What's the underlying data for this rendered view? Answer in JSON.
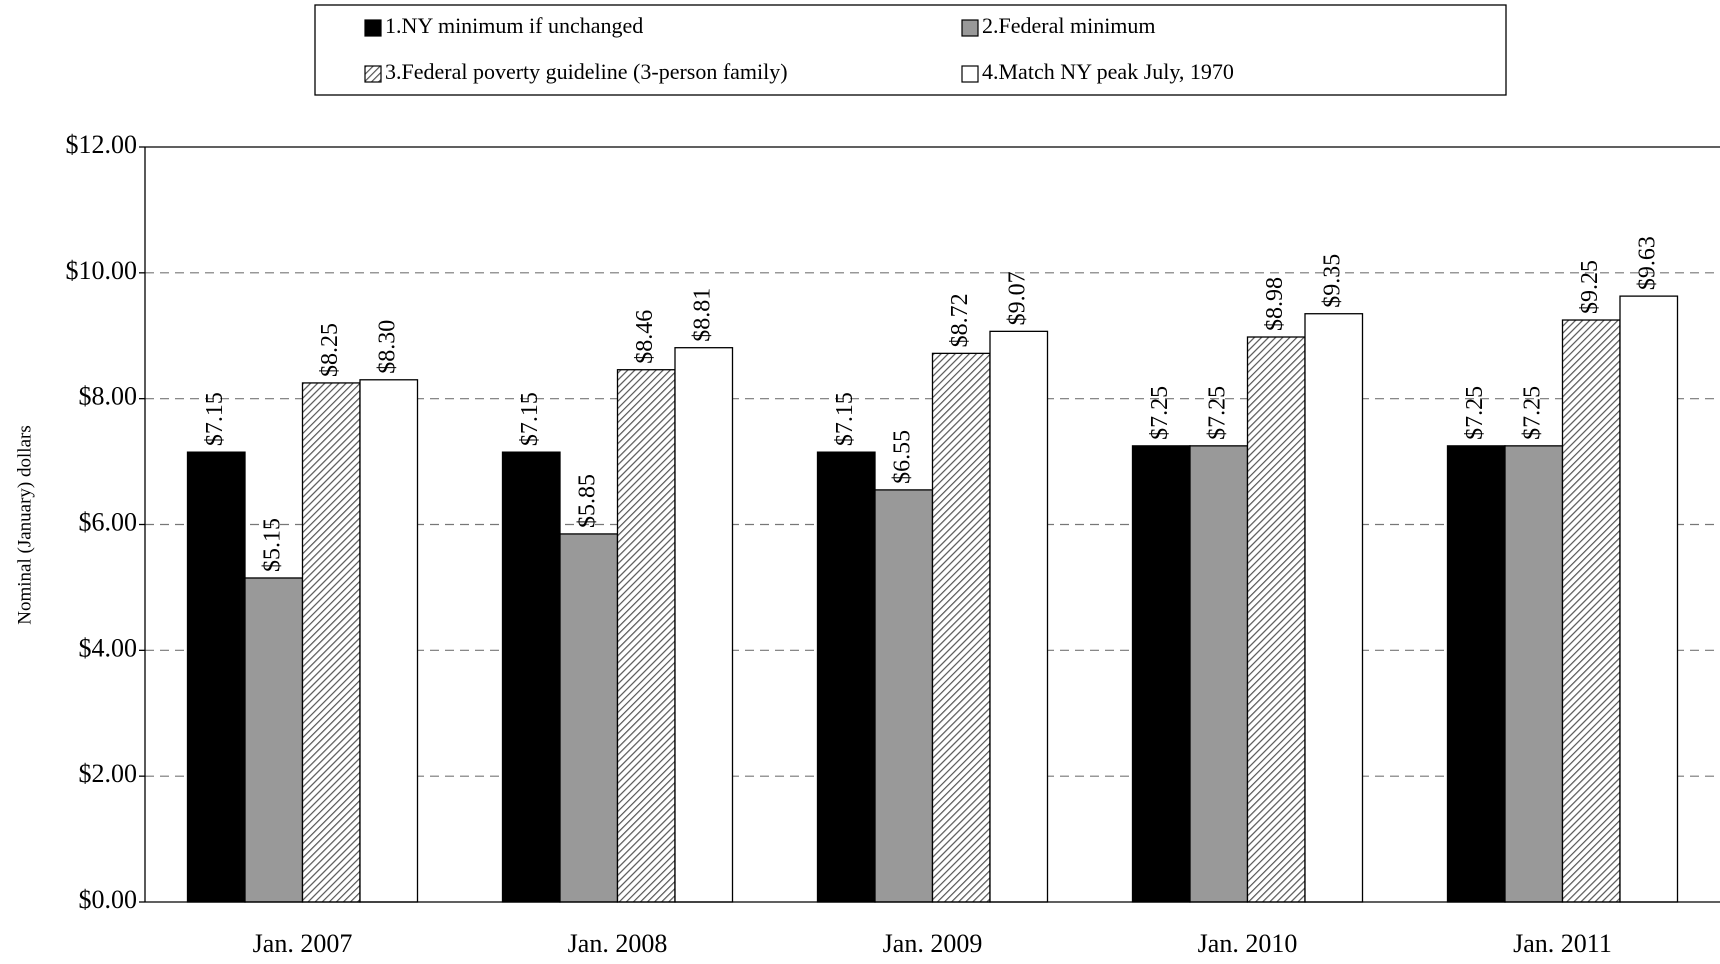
{
  "chart_data": {
    "type": "bar",
    "y_axis_label": "Nominal (January) dollars",
    "categories": [
      "Jan. 2007",
      "Jan. 2008",
      "Jan. 2009",
      "Jan. 2010",
      "Jan. 2011"
    ],
    "series": [
      {
        "name": "1.NY minimum if unchanged",
        "color": "#000000",
        "values": [
          7.15,
          7.15,
          7.15,
          7.25,
          7.25
        ],
        "value_labels": [
          "$7.15",
          "$7.15",
          "$7.15",
          "$7.25",
          "$7.25"
        ]
      },
      {
        "name": "2.Federal minimum",
        "color": "#999999",
        "values": [
          5.15,
          5.85,
          6.55,
          7.25,
          7.25
        ],
        "value_labels": [
          "$5.15",
          "$5.85",
          "$6.55",
          "$7.25",
          "$7.25"
        ]
      },
      {
        "name": "3.Federal poverty guideline (3-person family)",
        "color": "#666666",
        "pattern": "diagonal-hatch",
        "values": [
          8.25,
          8.46,
          8.72,
          8.98,
          9.25
        ],
        "value_labels": [
          "$8.25",
          "$8.46",
          "$8.72",
          "$8.98",
          "$9.25"
        ]
      },
      {
        "name": "4.Match NY peak July, 1970",
        "color": "#ffffff",
        "values": [
          8.3,
          8.81,
          9.07,
          9.35,
          9.63
        ],
        "value_labels": [
          "$8.30",
          "$8.81",
          "$9.07",
          "$9.35",
          "$9.63"
        ]
      }
    ],
    "ylim": [
      0,
      12
    ],
    "yticks": [
      {
        "value": 0,
        "label": "$0.00"
      },
      {
        "value": 2,
        "label": "$2.00"
      },
      {
        "value": 4,
        "label": "$4.00"
      },
      {
        "value": 6,
        "label": "$6.00"
      },
      {
        "value": 8,
        "label": "$8.00"
      },
      {
        "value": 10,
        "label": "$10.00"
      },
      {
        "value": 12,
        "label": "$12.00"
      }
    ],
    "grid": true
  }
}
